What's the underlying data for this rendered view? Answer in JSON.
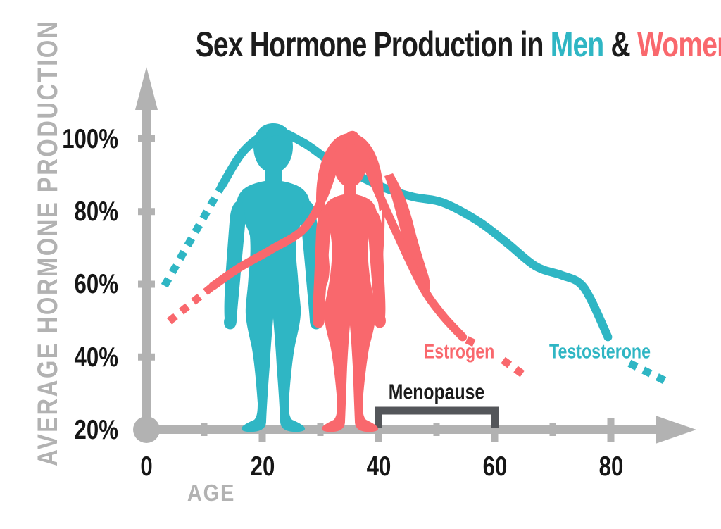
{
  "title": {
    "prefix": "Sex Hormone Production in ",
    "men": "Men",
    "amp": " & ",
    "women": "Women",
    "full": "Sex Hormone Production in Men & Women"
  },
  "colors": {
    "teal": "#2fb6c4",
    "coral": "#f9686d",
    "axis_gray": "#b2b2b2",
    "bracket_gray": "#54565a",
    "text_black": "#1c1c1c"
  },
  "labels": {
    "estrogen": "Estrogen",
    "testosterone": "Testosterone",
    "menopause": "Menopause",
    "age": "AGE",
    "y_axis": "AVERAGE HORMONE PRODUCTION"
  },
  "chart_data": {
    "type": "line",
    "title": "Sex Hormone Production in Men & Women",
    "xlabel": "AGE",
    "ylabel": "AVERAGE HORMONE PRODUCTION",
    "x_tick_labels": [
      "0",
      "20",
      "40",
      "60",
      "80"
    ],
    "y_tick_labels": [
      "100%",
      "80%",
      "60%",
      "40%",
      "20%"
    ],
    "x_ticks": [
      0,
      20,
      40,
      60,
      80
    ],
    "x_minor_ticks": [
      10,
      30,
      50,
      70
    ],
    "y_ticks": [
      100,
      80,
      60,
      40,
      20
    ],
    "xlim": [
      0,
      94
    ],
    "ylim": [
      20,
      110
    ],
    "grid": false,
    "legend_position": "inline-labels",
    "series": [
      {
        "name": "Testosterone",
        "color": "#2fb6c4",
        "segments": [
          {
            "style": "dotted",
            "points": [
              [
                3.5,
                60.5
              ],
              [
                13,
                87
              ]
            ]
          },
          {
            "style": "solid",
            "points": [
              [
                13,
                87
              ],
              [
                17,
                97
              ],
              [
                22,
                102
              ],
              [
                27,
                99
              ],
              [
                32,
                93.5
              ],
              [
                37,
                89.5
              ],
              [
                41,
                86.5
              ],
              [
                46,
                84
              ],
              [
                51,
                82.5
              ],
              [
                57,
                77.5
              ],
              [
                62,
                71.5
              ],
              [
                67,
                65
              ],
              [
                71.5,
                62.5
              ],
              [
                74.5,
                60.5
              ],
              [
                76.5,
                56
              ],
              [
                79.5,
                45.5
              ]
            ]
          },
          {
            "style": "dotted",
            "points": [
              [
                83.8,
                37.8
              ],
              [
                90.3,
                32.7
              ]
            ]
          }
        ]
      },
      {
        "name": "Estrogen",
        "color": "#f9686d",
        "segments": [
          {
            "style": "dotted",
            "points": [
              [
                4.5,
                50.5
              ],
              [
                11.5,
                59.5
              ]
            ]
          },
          {
            "style": "solid",
            "points": [
              [
                11.5,
                59.5
              ],
              [
                16,
                64.5
              ],
              [
                21.5,
                69.5
              ],
              [
                27,
                75
              ],
              [
                30.5,
                84
              ],
              [
                33,
                95
              ],
              [
                35.5,
                101
              ],
              [
                37.5,
                95
              ],
              [
                39.5,
                87
              ],
              [
                43,
                74.5
              ],
              [
                47.5,
                59.5
              ],
              [
                51,
                51.5
              ],
              [
                54.5,
                45.5
              ]
            ]
          },
          {
            "style": "dotted",
            "points": [
              [
                55.8,
                44.3
              ],
              [
                56.2,
                44
              ]
            ]
          },
          {
            "style": "dotted",
            "points": [
              [
                62,
                38.5
              ],
              [
                65.7,
                34.3
              ]
            ]
          }
        ]
      }
    ],
    "annotations": [
      {
        "label": "Menopause",
        "x_start": 40,
        "x_end": 60
      }
    ]
  }
}
